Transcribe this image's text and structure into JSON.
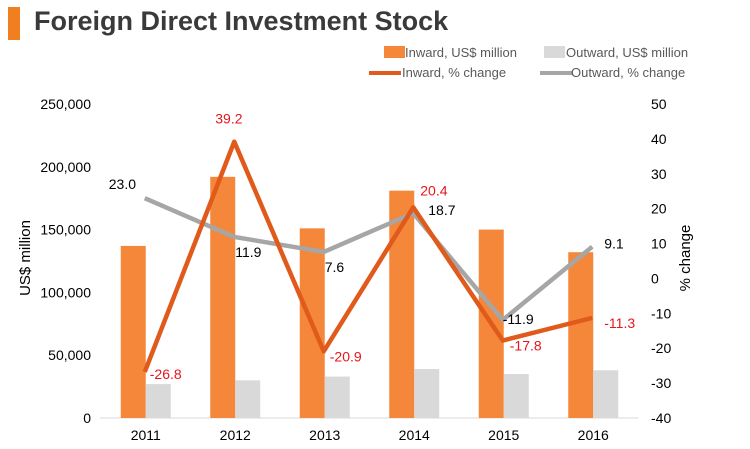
{
  "title": "Foreign Direct Investment Stock",
  "colors": {
    "title_bar": "#f07f1f",
    "inward_bar": "#f5873a",
    "outward_bar": "#d9d9d9",
    "inward_line": "#e05a1b",
    "outward_line": "#a6a6a6",
    "inward_label": "#e8141c",
    "outward_label": "#000000"
  },
  "chart_data": {
    "type": "bar+line",
    "title": "Foreign Direct Investment Stock",
    "categories": [
      "2011",
      "2012",
      "2013",
      "2014",
      "2015",
      "2016"
    ],
    "ylabel_left": "US$ million",
    "ylabel_right": "% change",
    "ylim_left": [
      0,
      250000
    ],
    "ylim_right": [
      -40,
      50
    ],
    "left_ticks": [
      "250,000",
      "200,000",
      "150,000",
      "100,000",
      "50,000",
      "0"
    ],
    "left_tick_values": [
      250000,
      200000,
      150000,
      100000,
      50000,
      0
    ],
    "right_ticks": [
      "50",
      "40",
      "30",
      "20",
      "10",
      "0",
      "-10",
      "-20",
      "-30",
      "-40"
    ],
    "right_tick_values": [
      50,
      40,
      30,
      20,
      10,
      0,
      -10,
      -20,
      -30,
      -40
    ],
    "bar_series": [
      {
        "name": "Inward, US$ million",
        "values": [
          137000,
          192000,
          151000,
          181000,
          150000,
          132000
        ]
      },
      {
        "name": "Outward, US$ million",
        "values": [
          27000,
          30000,
          33000,
          39000,
          35000,
          38000
        ]
      }
    ],
    "line_series": [
      {
        "name": "Inward, % change",
        "values": [
          -26.8,
          39.2,
          -20.9,
          20.4,
          -17.8,
          -11.3
        ],
        "labels": [
          "-26.8",
          "39.2",
          "-20.9",
          "20.4",
          "-17.8",
          "-11.3"
        ]
      },
      {
        "name": "Outward, % change",
        "values": [
          23.0,
          11.9,
          7.6,
          18.7,
          -11.9,
          9.1
        ],
        "labels": [
          "23.0",
          "11.9",
          "7.6",
          "18.7",
          "-11.9",
          "9.1"
        ]
      }
    ],
    "legend": [
      "Inward, US$ million",
      "Outward, US$ million",
      "Inward, % change",
      "Outward, % change"
    ],
    "legend_position": "top-right",
    "grid": false
  }
}
